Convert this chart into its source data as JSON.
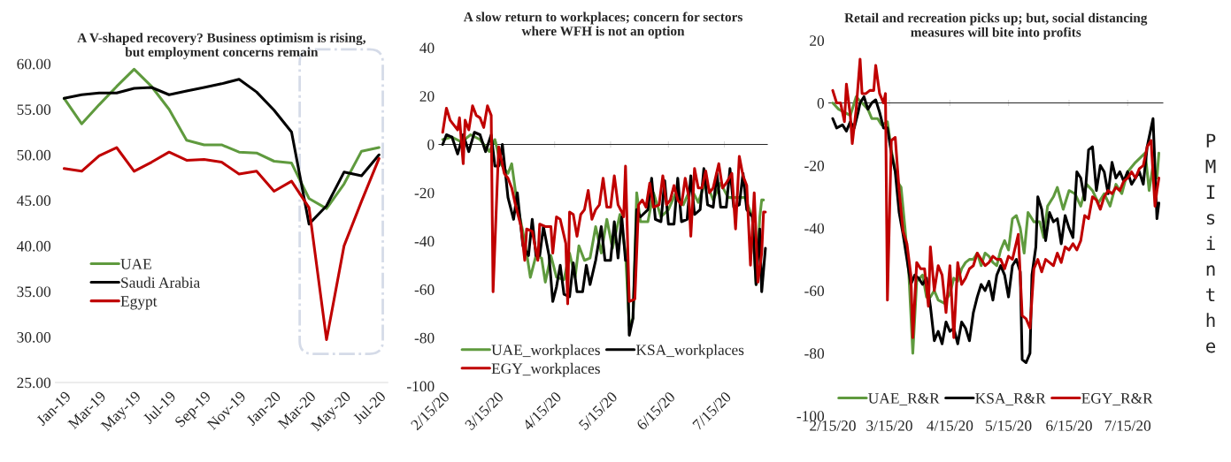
{
  "chart_data": [
    {
      "type": "line",
      "title": "A V-shaped recovery? Business optimism is rising,\nbut employment concerns remain",
      "categories": [
        "Jan-19",
        null,
        "Mar-19",
        null,
        "May-19",
        null,
        "Jul-19",
        null,
        "Sep-19",
        null,
        "Nov-19",
        null,
        "Jan-20",
        null,
        "Mar-20",
        null,
        "May-20",
        null,
        "Jul-20"
      ],
      "series": [
        {
          "name": "UAE",
          "color": "#5f9a3e",
          "values": [
            56.2,
            53.4,
            55.5,
            57.5,
            59.4,
            57.5,
            55.0,
            51.6,
            51.1,
            51.1,
            50.3,
            50.2,
            49.3,
            49.1,
            45.2,
            44.1,
            46.8,
            50.4,
            50.8
          ]
        },
        {
          "name": "Saudi Arabia",
          "color": "#000000",
          "values": [
            56.2,
            56.6,
            56.8,
            56.8,
            57.3,
            57.4,
            56.6,
            57.0,
            57.4,
            57.8,
            58.3,
            56.9,
            54.9,
            52.5,
            42.4,
            44.4,
            48.1,
            47.7,
            50.0
          ]
        },
        {
          "name": "Egypt",
          "color": "#c00000",
          "values": [
            48.5,
            48.2,
            49.9,
            50.8,
            48.2,
            49.2,
            50.3,
            49.4,
            49.5,
            49.2,
            47.9,
            48.2,
            46.0,
            47.1,
            44.2,
            29.7,
            40.0,
            44.9,
            49.6
          ]
        }
      ],
      "ylim": [
        25,
        60
      ],
      "yticks": [
        {
          "value": 25,
          "label": "25.00"
        },
        {
          "value": 30,
          "label": "30.00"
        },
        {
          "value": 35,
          "label": "35.00"
        },
        {
          "value": 40,
          "label": "40.00"
        },
        {
          "value": 45,
          "label": "45.00"
        },
        {
          "value": 50,
          "label": "50.00"
        },
        {
          "value": 55,
          "label": "55.00"
        },
        {
          "value": 60,
          "label": "60.00"
        }
      ],
      "legend": "bottom left"
    },
    {
      "type": "line",
      "title": "A slow return to workplaces; concern for sectors\nwhere WFH is not an option",
      "series": [
        {
          "name": "UAE_workplaces",
          "color": "#5f9a3e",
          "x": [
            "2020-02-15",
            "2020-02-20",
            "2020-02-25",
            "2020-03-01",
            "2020-03-06",
            "2020-03-11",
            "2020-03-14",
            "2020-03-17",
            "2020-03-21",
            "2020-03-23",
            "2020-03-26",
            "2020-03-30",
            "2020-04-02",
            "2020-04-05",
            "2020-04-08",
            "2020-04-10",
            "2020-04-13",
            "2020-04-16",
            "2020-04-20",
            "2020-04-23",
            "2020-04-26",
            "2020-04-28",
            "2020-05-01",
            "2020-05-04",
            "2020-05-07",
            "2020-05-10",
            "2020-05-13",
            "2020-05-16",
            "2020-05-20",
            "2020-05-23",
            "2020-05-25",
            "2020-05-27",
            "2020-05-29",
            "2020-05-31",
            "2020-06-04",
            "2020-06-07",
            "2020-06-11",
            "2020-06-15",
            "2020-06-19",
            "2020-06-23",
            "2020-06-27",
            "2020-07-01",
            "2020-07-05",
            "2020-07-09",
            "2020-07-13",
            "2020-07-17",
            "2020-07-22",
            "2020-07-26",
            "2020-07-30",
            "2020-08-01",
            "2020-08-03",
            "2020-08-04",
            "2020-08-05"
          ],
          "values": [
            2,
            3,
            1,
            4,
            2,
            -3,
            2,
            -8,
            -12,
            -8,
            -25,
            -40,
            -55,
            -46,
            -47,
            -57,
            -46,
            -55,
            -56,
            -45,
            -55,
            -42,
            -48,
            -47,
            -34,
            -45,
            -31,
            -43,
            -29,
            -45,
            -75,
            -72,
            -20,
            -32,
            -32,
            -20,
            -30,
            -27,
            -20,
            -25,
            -18,
            -24,
            -15,
            -23,
            -16,
            -22,
            -22,
            -22,
            -30,
            -58,
            -30,
            -23,
            -23
          ]
        },
        {
          "name": "KSA_workplaces",
          "color": "#000000",
          "x": [
            "2020-02-15",
            "2020-02-17",
            "2020-02-20",
            "2020-02-23",
            "2020-02-26",
            "2020-02-29",
            "2020-03-03",
            "2020-03-06",
            "2020-03-09",
            "2020-03-12",
            "2020-03-14",
            "2020-03-16",
            "2020-03-18",
            "2020-03-21",
            "2020-03-24",
            "2020-03-26",
            "2020-03-29",
            "2020-04-01",
            "2020-04-03",
            "2020-04-05",
            "2020-04-07",
            "2020-04-09",
            "2020-04-12",
            "2020-04-14",
            "2020-04-16",
            "2020-04-18",
            "2020-04-20",
            "2020-04-23",
            "2020-04-25",
            "2020-04-27",
            "2020-04-30",
            "2020-05-02",
            "2020-05-04",
            "2020-05-07",
            "2020-05-10",
            "2020-05-12",
            "2020-05-15",
            "2020-05-17",
            "2020-05-19",
            "2020-05-21",
            "2020-05-23",
            "2020-05-24",
            "2020-05-25",
            "2020-05-27",
            "2020-05-29",
            "2020-05-31",
            "2020-06-04",
            "2020-06-06",
            "2020-06-08",
            "2020-06-11",
            "2020-06-13",
            "2020-06-15",
            "2020-06-18",
            "2020-06-20",
            "2020-06-22",
            "2020-06-25",
            "2020-06-27",
            "2020-06-29",
            "2020-07-02",
            "2020-07-04",
            "2020-07-06",
            "2020-07-09",
            "2020-07-11",
            "2020-07-13",
            "2020-07-16",
            "2020-07-18",
            "2020-07-20",
            "2020-07-23",
            "2020-07-25",
            "2020-07-27",
            "2020-07-30",
            "2020-08-01",
            "2020-08-03",
            "2020-08-04",
            "2020-08-06"
          ],
          "values": [
            0,
            4,
            3,
            -4,
            4,
            -3,
            5,
            4,
            -3,
            4,
            -9,
            -9,
            0,
            -22,
            -31,
            -20,
            -42,
            -46,
            -31,
            -46,
            -46,
            -34,
            -46,
            -65,
            -59,
            -50,
            -62,
            -63,
            -49,
            -61,
            -61,
            -50,
            -58,
            -48,
            -34,
            -48,
            -48,
            -32,
            -47,
            -30,
            -48,
            -48,
            -79,
            -72,
            -27,
            -30,
            -27,
            -14,
            -31,
            -32,
            -15,
            -33,
            -33,
            -14,
            -32,
            -31,
            -13,
            -29,
            -27,
            -10,
            -25,
            -26,
            -12,
            -26,
            -26,
            -10,
            -26,
            -25,
            -12,
            -27,
            -30,
            -58,
            -35,
            -61,
            -43
          ]
        },
        {
          "name": "EGY_workplaces",
          "color": "#c00000",
          "x": [
            "2020-02-15",
            "2020-02-17",
            "2020-02-19",
            "2020-02-21",
            "2020-02-23",
            "2020-02-24",
            "2020-02-26",
            "2020-02-27",
            "2020-02-29",
            "2020-03-02",
            "2020-03-04",
            "2020-03-06",
            "2020-03-08",
            "2020-03-10",
            "2020-03-12",
            "2020-03-13",
            "2020-03-16",
            "2020-03-19",
            "2020-03-21",
            "2020-03-23",
            "2020-03-25",
            "2020-03-28",
            "2020-03-30",
            "2020-03-31",
            "2020-04-03",
            "2020-04-06",
            "2020-04-07",
            "2020-04-10",
            "2020-04-13",
            "2020-04-14",
            "2020-04-16",
            "2020-04-18",
            "2020-04-21",
            "2020-04-22",
            "2020-04-23",
            "2020-04-25",
            "2020-04-27",
            "2020-04-29",
            "2020-05-01",
            "2020-05-03",
            "2020-05-05",
            "2020-05-07",
            "2020-05-09",
            "2020-05-11",
            "2020-05-13",
            "2020-05-15",
            "2020-05-17",
            "2020-05-19",
            "2020-05-21",
            "2020-05-22",
            "2020-05-23",
            "2020-05-25",
            "2020-05-28",
            "2020-05-30",
            "2020-06-01",
            "2020-06-03",
            "2020-06-05",
            "2020-06-07",
            "2020-06-10",
            "2020-06-12",
            "2020-06-14",
            "2020-06-16",
            "2020-06-18",
            "2020-06-20",
            "2020-06-22",
            "2020-06-24",
            "2020-06-26",
            "2020-06-27",
            "2020-06-29",
            "2020-07-01",
            "2020-07-03",
            "2020-07-05",
            "2020-07-07",
            "2020-07-09",
            "2020-07-12",
            "2020-07-14",
            "2020-07-16",
            "2020-07-19",
            "2020-07-21",
            "2020-07-23",
            "2020-07-25",
            "2020-07-27",
            "2020-07-29",
            "2020-07-31",
            "2020-08-02",
            "2020-08-04",
            "2020-08-05",
            "2020-08-06"
          ],
          "values": [
            5,
            15,
            10,
            8,
            6,
            11,
            -8,
            10,
            6,
            16,
            12,
            11,
            7,
            16,
            12,
            -61,
            -1,
            -12,
            -14,
            -18,
            -25,
            -34,
            -48,
            -35,
            -36,
            -48,
            -33,
            -34,
            -34,
            -45,
            -30,
            -31,
            -41,
            -66,
            -28,
            -29,
            -38,
            -29,
            -27,
            -19,
            -31,
            -27,
            -25,
            -14,
            -26,
            -26,
            -13,
            -25,
            -28,
            -30,
            -9,
            -65,
            -64,
            -25,
            -23,
            -26,
            -16,
            -26,
            -25,
            -13,
            -25,
            -23,
            -17,
            -23,
            -25,
            -14,
            -22,
            -38,
            -10,
            -18,
            -18,
            -11,
            -20,
            -18,
            -8,
            -18,
            -16,
            -12,
            -35,
            -5,
            -13,
            -17,
            -50,
            -20,
            -57,
            -45,
            -28,
            -28
          ]
        }
      ],
      "xlim": [
        "2020-02-13",
        "2020-08-07"
      ],
      "xticks": [
        {
          "value": "2020-02-15",
          "label": "2/15/20"
        },
        {
          "value": "2020-03-15",
          "label": "3/15/20"
        },
        {
          "value": "2020-04-15",
          "label": "4/15/20"
        },
        {
          "value": "2020-05-15",
          "label": "5/15/20"
        },
        {
          "value": "2020-06-15",
          "label": "6/15/20"
        },
        {
          "value": "2020-07-15",
          "label": "7/15/20"
        }
      ],
      "ylim": [
        -100,
        40
      ],
      "yticks": [
        -100,
        -80,
        -60,
        -40,
        -20,
        0,
        20,
        40
      ],
      "legend": "bottom"
    },
    {
      "type": "line",
      "title": "Retail and recreation picks up; but, social distancing\nmeasures will bite into profits",
      "series": [
        {
          "name": "UAE_R&R",
          "color": "#5f9a3e",
          "x": [
            "2020-02-15",
            "2020-02-18",
            "2020-02-21",
            "2020-02-24",
            "2020-02-27",
            "2020-03-01",
            "2020-03-04",
            "2020-03-06",
            "2020-03-09",
            "2020-03-11",
            "2020-03-14",
            "2020-03-16",
            "2020-03-19",
            "2020-03-21",
            "2020-03-23",
            "2020-03-25",
            "2020-03-27",
            "2020-03-29",
            "2020-04-01",
            "2020-04-03",
            "2020-04-05",
            "2020-04-07",
            "2020-04-09",
            "2020-04-12",
            "2020-04-15",
            "2020-04-17",
            "2020-04-19",
            "2020-04-21",
            "2020-04-23",
            "2020-04-25",
            "2020-04-27",
            "2020-04-29",
            "2020-05-01",
            "2020-05-03",
            "2020-05-05",
            "2020-05-07",
            "2020-05-09",
            "2020-05-11",
            "2020-05-13",
            "2020-05-15",
            "2020-05-17",
            "2020-05-19",
            "2020-05-21",
            "2020-05-23",
            "2020-05-25",
            "2020-05-28",
            "2020-05-31",
            "2020-06-02",
            "2020-06-04",
            "2020-06-07",
            "2020-06-09",
            "2020-06-12",
            "2020-06-15",
            "2020-06-18",
            "2020-06-21",
            "2020-06-24",
            "2020-06-27",
            "2020-06-30",
            "2020-07-03",
            "2020-07-06",
            "2020-07-09",
            "2020-07-12",
            "2020-07-15",
            "2020-07-19",
            "2020-07-24",
            "2020-07-26",
            "2020-07-28",
            "2020-07-30",
            "2020-07-31"
          ],
          "values": [
            0,
            -2,
            -3,
            -4,
            2,
            0,
            -2,
            -5,
            -5,
            -7,
            -6,
            -15,
            -25,
            -27,
            -40,
            -55,
            -80,
            -57,
            -55,
            -62,
            -62,
            -60,
            -63,
            -64,
            -61,
            -56,
            -57,
            -53,
            -51,
            -50,
            -50,
            -48,
            -52,
            -48,
            -49,
            -51,
            -52,
            -47,
            -44,
            -47,
            -37,
            -36,
            -40,
            -48,
            -35,
            -38,
            -38,
            -43,
            -33,
            -30,
            -27,
            -34,
            -28,
            -29,
            -33,
            -26,
            -28,
            -32,
            -29,
            -33,
            -26,
            -29,
            -22,
            -19,
            -16,
            -28,
            -20,
            -24,
            -16
          ]
        },
        {
          "name": "KSA_R&R",
          "color": "#000000",
          "x": [
            "2020-02-15",
            "2020-02-17",
            "2020-02-20",
            "2020-02-22",
            "2020-02-24",
            "2020-02-26",
            "2020-02-28",
            "2020-02-29",
            "2020-03-02",
            "2020-03-04",
            "2020-03-06",
            "2020-03-08",
            "2020-03-10",
            "2020-03-12",
            "2020-03-14",
            "2020-03-16",
            "2020-03-18",
            "2020-03-20",
            "2020-03-22",
            "2020-03-24",
            "2020-03-26",
            "2020-03-28",
            "2020-03-30",
            "2020-04-01",
            "2020-04-03",
            "2020-04-05",
            "2020-04-07",
            "2020-04-09",
            "2020-04-11",
            "2020-04-13",
            "2020-04-15",
            "2020-04-17",
            "2020-04-19",
            "2020-04-21",
            "2020-04-23",
            "2020-04-25",
            "2020-04-27",
            "2020-04-29",
            "2020-05-01",
            "2020-05-03",
            "2020-05-05",
            "2020-05-07",
            "2020-05-09",
            "2020-05-11",
            "2020-05-13",
            "2020-05-15",
            "2020-05-17",
            "2020-05-19",
            "2020-05-21",
            "2020-05-22",
            "2020-05-24",
            "2020-05-26",
            "2020-05-27",
            "2020-05-29",
            "2020-05-30",
            "2020-06-01",
            "2020-06-03",
            "2020-06-05",
            "2020-06-07",
            "2020-06-09",
            "2020-06-11",
            "2020-06-13",
            "2020-06-15",
            "2020-06-17",
            "2020-06-19",
            "2020-06-21",
            "2020-06-23",
            "2020-06-25",
            "2020-06-27",
            "2020-06-29",
            "2020-07-01",
            "2020-07-03",
            "2020-07-05",
            "2020-07-07",
            "2020-07-09",
            "2020-07-11",
            "2020-07-13",
            "2020-07-15",
            "2020-07-17",
            "2020-07-19",
            "2020-07-21",
            "2020-07-23",
            "2020-07-25",
            "2020-07-27",
            "2020-07-28",
            "2020-07-30",
            "2020-07-31"
          ],
          "values": [
            -5,
            -8,
            -7,
            -9,
            -6,
            -8,
            -3,
            0,
            2,
            -2,
            0,
            1,
            -3,
            -8,
            -8,
            -16,
            -22,
            -35,
            -42,
            -50,
            -58,
            -55,
            -56,
            -58,
            -56,
            -65,
            -76,
            -73,
            -77,
            -70,
            -73,
            -72,
            -77,
            -70,
            -72,
            -76,
            -67,
            -62,
            -58,
            -60,
            -57,
            -63,
            -55,
            -52,
            -55,
            -62,
            -52,
            -50,
            -54,
            -82,
            -83,
            -80,
            -55,
            -46,
            -30,
            -34,
            -44,
            -35,
            -38,
            -37,
            -45,
            -36,
            -40,
            -43,
            -22,
            -24,
            -31,
            -15,
            -14,
            -28,
            -20,
            -22,
            -29,
            -19,
            -24,
            -22,
            -25,
            -22,
            -26,
            -24,
            -22,
            -26,
            -14,
            -8,
            -5,
            -37,
            -32
          ]
        },
        {
          "name": "EGY_R&R",
          "color": "#c00000",
          "x": [
            "2020-02-15",
            "2020-02-17",
            "2020-02-19",
            "2020-02-21",
            "2020-02-22",
            "2020-02-24",
            "2020-02-25",
            "2020-02-27",
            "2020-02-29",
            "2020-03-01",
            "2020-03-03",
            "2020-03-05",
            "2020-03-07",
            "2020-03-08",
            "2020-03-10",
            "2020-03-12",
            "2020-03-13",
            "2020-03-14",
            "2020-03-16",
            "2020-03-18",
            "2020-03-20",
            "2020-03-22",
            "2020-03-24",
            "2020-03-26",
            "2020-03-27",
            "2020-03-29",
            "2020-03-31",
            "2020-04-02",
            "2020-04-04",
            "2020-04-05",
            "2020-04-07",
            "2020-04-09",
            "2020-04-11",
            "2020-04-13",
            "2020-04-15",
            "2020-04-17",
            "2020-04-19",
            "2020-04-21",
            "2020-04-23",
            "2020-04-25",
            "2020-04-27",
            "2020-04-29",
            "2020-05-01",
            "2020-05-03",
            "2020-05-05",
            "2020-05-07",
            "2020-05-09",
            "2020-05-11",
            "2020-05-13",
            "2020-05-15",
            "2020-05-17",
            "2020-05-20",
            "2020-05-22",
            "2020-05-24",
            "2020-05-26",
            "2020-05-28",
            "2020-05-30",
            "2020-06-01",
            "2020-06-03",
            "2020-06-05",
            "2020-06-07",
            "2020-06-09",
            "2020-06-11",
            "2020-06-13",
            "2020-06-15",
            "2020-06-17",
            "2020-06-19",
            "2020-06-21",
            "2020-06-23",
            "2020-06-25",
            "2020-06-27",
            "2020-06-29",
            "2020-07-01",
            "2020-07-03",
            "2020-07-05",
            "2020-07-07",
            "2020-07-09",
            "2020-07-11",
            "2020-07-13",
            "2020-07-15",
            "2020-07-17",
            "2020-07-19",
            "2020-07-21",
            "2020-07-23",
            "2020-07-25",
            "2020-07-27",
            "2020-07-29",
            "2020-07-30",
            "2020-07-31"
          ],
          "values": [
            4,
            0,
            0,
            -6,
            6,
            -4,
            -13,
            -2,
            14,
            3,
            3,
            4,
            4,
            12,
            3,
            0,
            3,
            -63,
            -12,
            -11,
            -28,
            -41,
            -45,
            -55,
            -75,
            -51,
            -53,
            -53,
            -65,
            -46,
            -60,
            -52,
            -55,
            -67,
            -52,
            -75,
            -51,
            -58,
            -56,
            -53,
            -52,
            -48,
            -50,
            -52,
            -51,
            -49,
            -50,
            -50,
            -53,
            -49,
            -50,
            -42,
            -68,
            -69,
            -72,
            -53,
            -50,
            -54,
            -50,
            -51,
            -52,
            -48,
            -51,
            -46,
            -47,
            -45,
            -47,
            -44,
            -36,
            -37,
            -30,
            -31,
            -34,
            -30,
            -28,
            -29,
            -27,
            -28,
            -25,
            -24,
            -22,
            -24,
            -21,
            -20,
            -14,
            -12,
            -33,
            -28,
            -24
          ]
        }
      ],
      "xlim": [
        "2020-02-13",
        "2020-08-02"
      ],
      "xticks": [
        {
          "value": "2020-02-15",
          "label": "2/15/20"
        },
        {
          "value": "2020-03-15",
          "label": "3/15/20"
        },
        {
          "value": "2020-04-15",
          "label": "4/15/20"
        },
        {
          "value": "2020-05-15",
          "label": "5/15/20"
        },
        {
          "value": "2020-06-15",
          "label": "6/15/20"
        },
        {
          "value": "2020-07-15",
          "label": "7/15/20"
        }
      ],
      "ylim": [
        -100,
        20
      ],
      "yticks": [
        -100,
        -80,
        -60,
        -40,
        -20,
        0,
        20
      ],
      "legend": "bottom",
      "annotations": [
        "P\nM\nI\ns\ni\nn\nt\nh\ne"
      ]
    }
  ]
}
